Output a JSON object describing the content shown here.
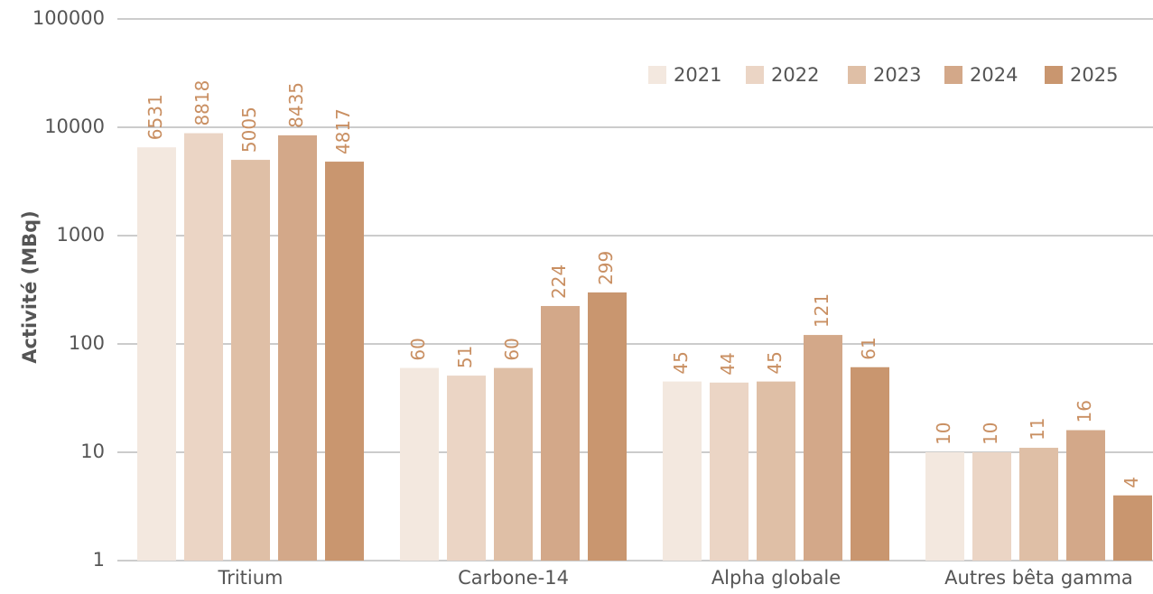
{
  "chart_data": {
    "type": "bar",
    "y_label": "Activité (MBq)",
    "categories": [
      "Tritium",
      "Carbone-14",
      "Alpha globale",
      "Autres bêta gamma"
    ],
    "series": [
      {
        "name": "2021",
        "color": "#f3e8df",
        "values": [
          6531,
          60,
          45,
          10
        ]
      },
      {
        "name": "2022",
        "color": "#ebd5c5",
        "values": [
          8818,
          51,
          44,
          10
        ]
      },
      {
        "name": "2023",
        "color": "#dfbfa6",
        "values": [
          5005,
          60,
          45,
          11
        ]
      },
      {
        "name": "2024",
        "color": "#d3a889",
        "values": [
          8435,
          224,
          121,
          16
        ]
      },
      {
        "name": "2025",
        "color": "#c9966f",
        "values": [
          4817,
          299,
          61,
          4
        ]
      }
    ],
    "ylim": [
      1,
      100000
    ],
    "yticks": [
      1,
      10,
      100,
      1000,
      10000,
      100000
    ],
    "log_scale": true,
    "grid": true,
    "legend": "top-right",
    "label_color": "#c98f62"
  }
}
